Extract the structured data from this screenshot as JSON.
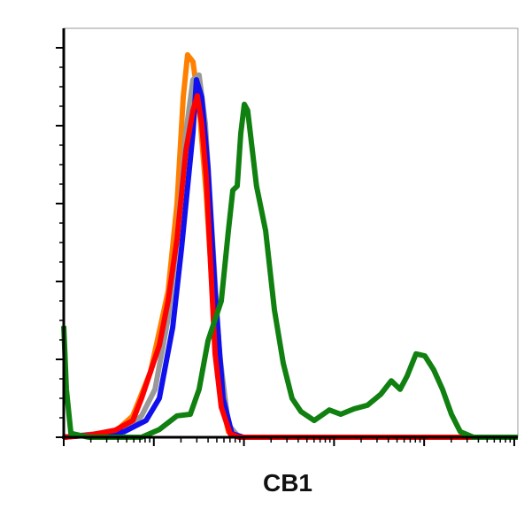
{
  "chart_data": {
    "type": "line",
    "xlabel": "CB1",
    "xscale": "log",
    "xlim": [
      1,
      109600
    ],
    "xticks": [
      1,
      10,
      100,
      1000,
      10000,
      100000
    ],
    "ylim": [
      0,
      105
    ],
    "yticks": [
      0,
      20,
      40,
      60,
      80,
      100
    ],
    "series": [
      {
        "color": "#ff8000",
        "x": [
          1,
          3.71,
          5.84,
          9.18,
          14.4,
          18.1,
          21.2,
          23.7,
          27.2,
          31.8,
          38.2,
          44.7,
          53.6,
          67.2,
          88.1,
          109600
        ],
        "values": [
          0,
          1.4,
          5.5,
          16.8,
          37.5,
          60,
          87.3,
          98.2,
          96.4,
          85,
          62.3,
          37.3,
          12.3,
          1.4,
          0,
          0
        ]
      },
      {
        "color": "#999999",
        "x": [
          1,
          4.66,
          7.3,
          10.3,
          14.4,
          18.1,
          22.7,
          27.2,
          31.8,
          37.3,
          44.7,
          53.6,
          67.2,
          88.1,
          109600
        ],
        "values": [
          0,
          1.6,
          5.5,
          12.3,
          30.5,
          50.9,
          78.2,
          91.8,
          93,
          80.5,
          51,
          21.4,
          3.2,
          0,
          0
        ]
      },
      {
        "color": "#1010ee",
        "x": [
          1,
          4.66,
          8.2,
          11.5,
          16.2,
          20.3,
          24.3,
          27.2,
          29.7,
          34.0,
          39.9,
          47.9,
          58.6,
          73.5,
          98.6,
          109600
        ],
        "values": [
          0,
          1.4,
          4.3,
          10,
          28.2,
          48.6,
          66.8,
          78.2,
          91.8,
          87.3,
          69.1,
          37.3,
          10,
          0.9,
          0,
          0
        ]
      },
      {
        "color": "#ff0000",
        "x": [
          1,
          1.88,
          3.71,
          5.84,
          7.3,
          9.18,
          11.5,
          14.4,
          18.1,
          22.7,
          27.2,
          30.4,
          34.0,
          38.2,
          42.7,
          47.9,
          56.1,
          70.3,
          88.1,
          109600
        ],
        "values": [
          0,
          0.5,
          1.8,
          4.3,
          10,
          16.8,
          23.6,
          35,
          50.9,
          73.6,
          83.9,
          87.7,
          80.5,
          66.8,
          44.1,
          21.4,
          7.7,
          0.9,
          0,
          0
        ]
      },
      {
        "color": "#108010",
        "x": [
          1,
          1.07,
          1.2,
          1.88,
          7.3,
          11.5,
          18.1,
          25.4,
          31.8,
          39.9,
          56.1,
          67.2,
          75.2,
          84.2,
          92.2,
          101,
          110,
          124,
          138,
          174,
          218,
          273,
          342,
          429,
          603,
          885,
          1188,
          1668,
          2342,
          3289,
          4314,
          5404,
          6474,
          8128,
          10180,
          12770,
          16000,
          20090,
          25180,
          35330,
          109600
        ],
        "values": [
          28.6,
          12.3,
          1,
          0,
          0,
          2,
          5.5,
          5.9,
          12.3,
          24.8,
          35,
          53,
          63.4,
          64.5,
          78,
          85.5,
          83.9,
          73.6,
          64.5,
          53,
          32.7,
          19,
          10,
          6.6,
          4.3,
          7,
          5.9,
          7.3,
          8.2,
          11,
          14.5,
          12.3,
          15.7,
          21.4,
          20.9,
          17.3,
          12.3,
          5.9,
          1.4,
          0,
          0
        ]
      }
    ]
  }
}
